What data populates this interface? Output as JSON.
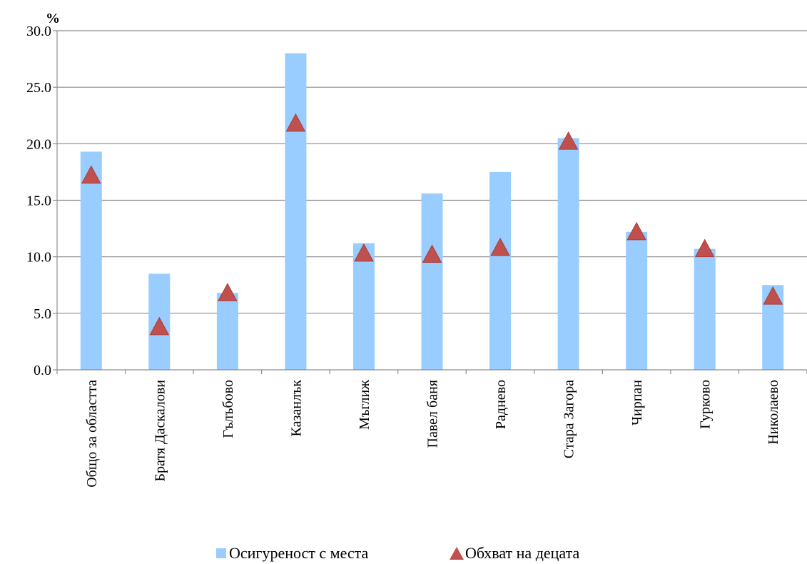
{
  "chart_data": {
    "type": "bar",
    "title": "",
    "xlabel": "",
    "ylabel": "",
    "yunit": "%",
    "ylim": [
      0,
      30
    ],
    "yticks": [
      "0.0",
      "5.0",
      "10.0",
      "15.0",
      "20.0",
      "25.0",
      "30.0"
    ],
    "grid": true,
    "legend_position": "bottom",
    "categories": [
      "Общо за областта",
      "Братя Даскалови",
      "Гълъбово",
      "Казанлък",
      "Мъглиж",
      "Павел баня",
      "Раднево",
      "Стара Загора",
      "Чирпан",
      "Гурково",
      "Николаево"
    ],
    "series": [
      {
        "name": "Осигуреност с места",
        "kind": "bar",
        "color": "#99ccff",
        "values": [
          19.3,
          8.5,
          6.8,
          28.0,
          11.2,
          15.6,
          17.5,
          20.5,
          12.2,
          10.7,
          7.5
        ]
      },
      {
        "name": "Обхват на децата",
        "kind": "marker-triangle",
        "color": "#c0504d",
        "values": [
          17.2,
          3.8,
          6.8,
          21.8,
          10.3,
          10.2,
          10.8,
          20.2,
          12.2,
          10.7,
          6.5
        ]
      }
    ]
  }
}
